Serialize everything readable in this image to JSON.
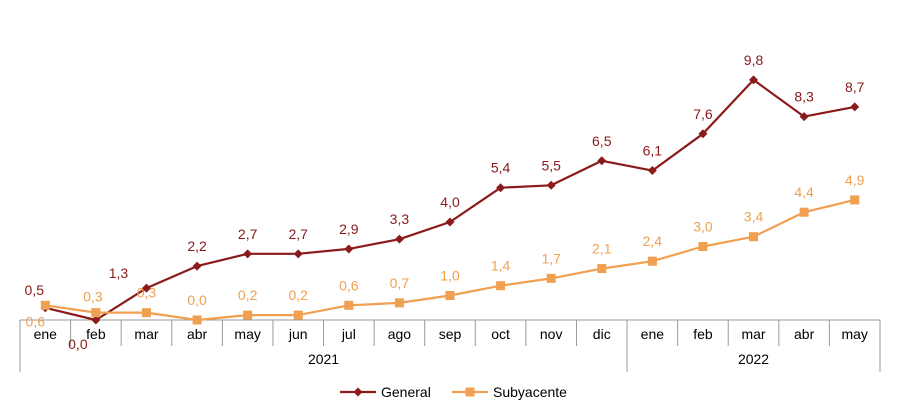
{
  "chart_data": {
    "type": "line",
    "categories": [
      "ene",
      "feb",
      "mar",
      "abr",
      "may",
      "jun",
      "jul",
      "ago",
      "sep",
      "oct",
      "nov",
      "dic",
      "ene",
      "feb",
      "mar",
      "abr",
      "may"
    ],
    "year_groups": [
      {
        "label": "2021",
        "start": 0,
        "end": 11
      },
      {
        "label": "2022",
        "start": 12,
        "end": 16
      }
    ],
    "series": [
      {
        "name": "General",
        "color": "#8b1a1a",
        "marker": "diamond",
        "values": [
          0.5,
          0.0,
          1.3,
          2.2,
          2.7,
          2.7,
          2.9,
          3.3,
          4.0,
          5.4,
          5.5,
          6.5,
          6.1,
          7.6,
          9.8,
          8.3,
          8.7
        ],
        "labels": [
          "0,5",
          "0,0",
          "1,3",
          "2,2",
          "2,7",
          "2,7",
          "2,9",
          "3,3",
          "4,0",
          "5,4",
          "5,5",
          "6,5",
          "6,1",
          "7,6",
          "9,8",
          "8,3",
          "8,7"
        ]
      },
      {
        "name": "Subyacente",
        "color": "#f0a050",
        "marker": "square",
        "values": [
          0.6,
          0.3,
          0.3,
          0.0,
          0.2,
          0.2,
          0.6,
          0.7,
          1.0,
          1.4,
          1.7,
          2.1,
          2.4,
          3.0,
          3.4,
          4.4,
          4.9
        ],
        "labels": [
          "0,6",
          "0,3",
          "0,3",
          "0,0",
          "0,2",
          "0,2",
          "0,6",
          "0,7",
          "1,0",
          "1,4",
          "1,7",
          "2,1",
          "2,4",
          "3,0",
          "3,4",
          "4,4",
          "4,9"
        ]
      }
    ],
    "ylim": [
      0,
      10.8
    ],
    "grid": false,
    "legend": "bottom-center"
  }
}
